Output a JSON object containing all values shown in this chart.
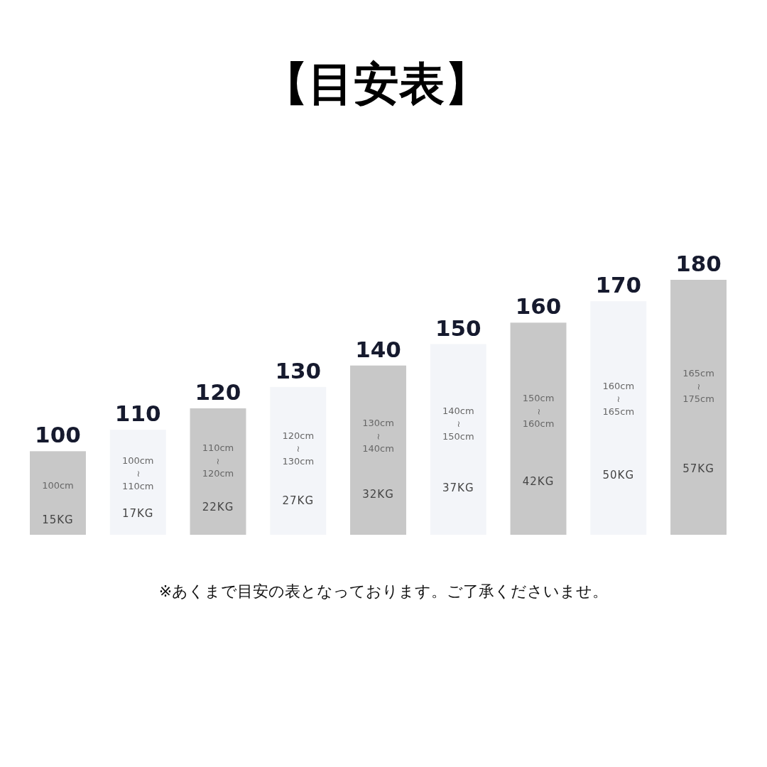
{
  "chart_data": {
    "type": "bar",
    "title": "【目安表】",
    "categories": [
      "100cm",
      "100cm~110cm",
      "110cm~120cm",
      "120cm~130cm",
      "130cm~140cm",
      "140cm~150cm",
      "150cm~160cm",
      "160cm~165cm",
      "165cm~175cm"
    ],
    "values": [
      100,
      110,
      120,
      130,
      140,
      150,
      160,
      170,
      180
    ],
    "colors": [
      "#c8c8c8",
      "#f3f5f9",
      "#c8c8c8",
      "#f3f5f9",
      "#c8c8c8",
      "#f3f5f9",
      "#c8c8c8",
      "#f3f5f9",
      "#c8c8c8"
    ],
    "data_labels": true,
    "ylim": [
      61,
      180
    ],
    "annotations": [
      "15KG",
      "17KG",
      "22KG",
      "27KG",
      "32KG",
      "37KG",
      "42KG",
      "50KG",
      "57KG",
      "※あくまで目安の表となっております。ご了承くださいませ。"
    ]
  }
}
